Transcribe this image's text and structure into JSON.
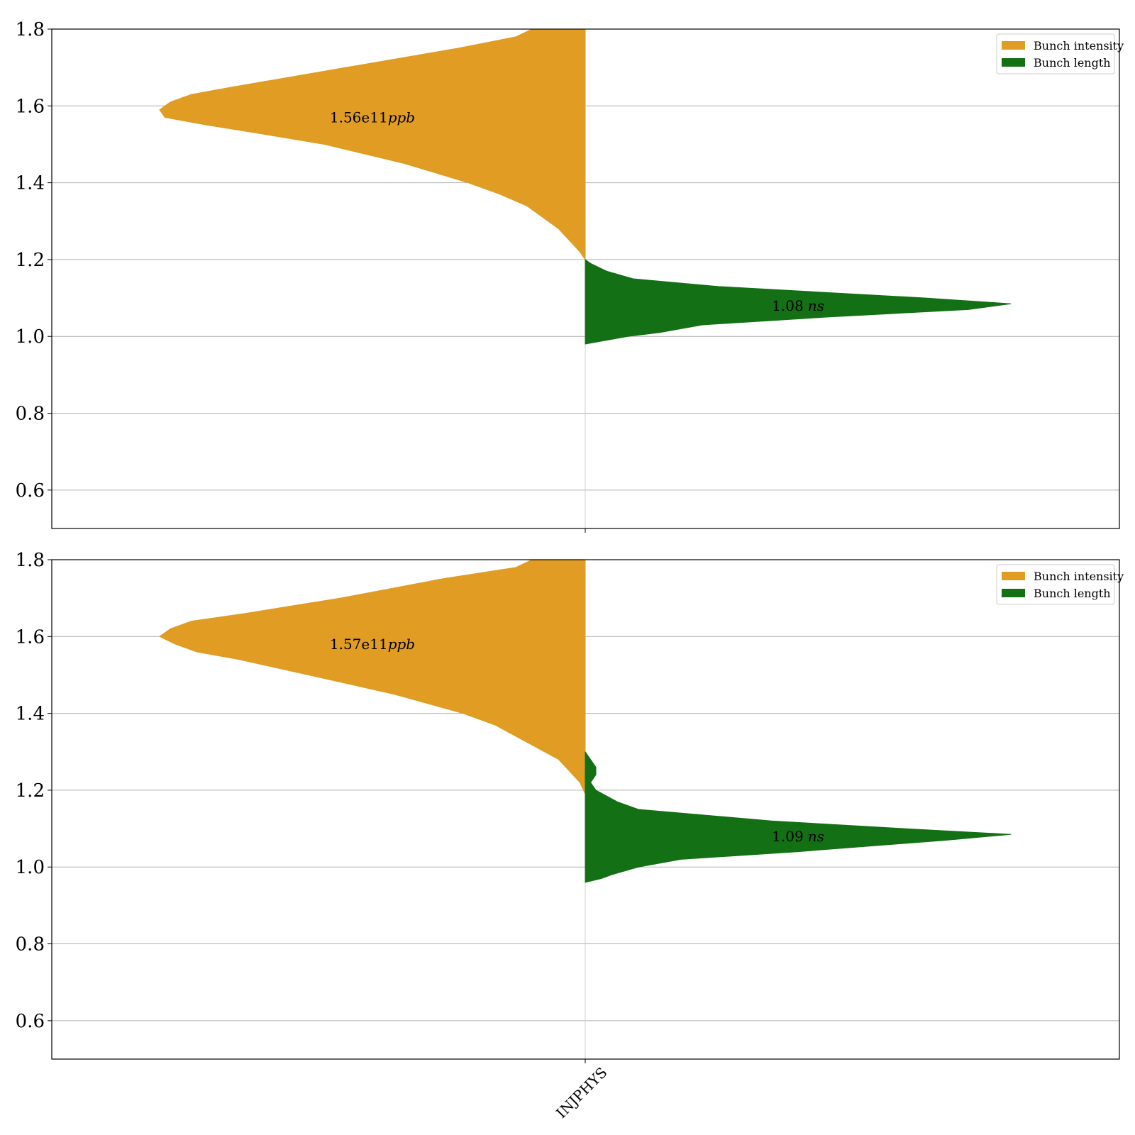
{
  "chart_data": [
    {
      "type": "violin",
      "categories": [
        "INJPHYS"
      ],
      "ylim": [
        0.5,
        1.8
      ],
      "yticks": [
        0.6,
        0.8,
        1.0,
        1.2,
        1.4,
        1.6,
        1.8
      ],
      "ytick_labels": [
        "0.6",
        "0.8",
        "1.0",
        "1.2",
        "1.4",
        "1.6",
        "1.8"
      ],
      "grid": true,
      "legend_position": "top-right",
      "series": [
        {
          "name": "Bunch intensity",
          "side": "left",
          "color": "#e09c23",
          "annotation": {
            "number": "1.56e11",
            "unit": "ppb",
            "y": 1.57
          },
          "profile": [
            [
              1.2,
              0.0
            ],
            [
              1.22,
              0.01
            ],
            [
              1.25,
              0.03
            ],
            [
              1.28,
              0.05
            ],
            [
              1.31,
              0.08
            ],
            [
              1.34,
              0.11
            ],
            [
              1.37,
              0.16
            ],
            [
              1.4,
              0.22
            ],
            [
              1.45,
              0.34
            ],
            [
              1.5,
              0.49
            ],
            [
              1.53,
              0.62
            ],
            [
              1.55,
              0.71
            ],
            [
              1.57,
              0.79
            ],
            [
              1.59,
              0.8
            ],
            [
              1.61,
              0.78
            ],
            [
              1.63,
              0.74
            ],
            [
              1.65,
              0.66
            ],
            [
              1.7,
              0.45
            ],
            [
              1.75,
              0.24
            ],
            [
              1.78,
              0.13
            ],
            [
              1.8,
              0.1
            ]
          ]
        },
        {
          "name": "Bunch length",
          "side": "right",
          "color": "#137014",
          "annotation": {
            "number": "1.08",
            "unit": "ns",
            "y": 1.08
          },
          "profile": [
            [
              0.98,
              0.0
            ],
            [
              0.99,
              0.04
            ],
            [
              1.0,
              0.08
            ],
            [
              1.01,
              0.14
            ],
            [
              1.03,
              0.22
            ],
            [
              1.05,
              0.45
            ],
            [
              1.07,
              0.72
            ],
            [
              1.085,
              0.8
            ],
            [
              1.1,
              0.64
            ],
            [
              1.12,
              0.38
            ],
            [
              1.13,
              0.25
            ],
            [
              1.15,
              0.09
            ],
            [
              1.17,
              0.04
            ],
            [
              1.19,
              0.01
            ],
            [
              1.2,
              0.0
            ]
          ]
        }
      ]
    },
    {
      "type": "violin",
      "categories": [
        "INJPHYS"
      ],
      "ylim": [
        0.5,
        1.8
      ],
      "yticks": [
        0.6,
        0.8,
        1.0,
        1.2,
        1.4,
        1.6,
        1.8
      ],
      "ytick_labels": [
        "0.6",
        "0.8",
        "1.0",
        "1.2",
        "1.4",
        "1.6",
        "1.8"
      ],
      "grid": true,
      "legend_position": "top-right",
      "xtick_labels": [
        "INJPHYS"
      ],
      "series": [
        {
          "name": "Bunch intensity",
          "side": "left",
          "color": "#e09c23",
          "annotation": {
            "number": "1.57e11",
            "unit": "ppb",
            "y": 1.58
          },
          "profile": [
            [
              1.19,
              0.0
            ],
            [
              1.22,
              0.01
            ],
            [
              1.25,
              0.03
            ],
            [
              1.28,
              0.05
            ],
            [
              1.31,
              0.09
            ],
            [
              1.34,
              0.13
            ],
            [
              1.37,
              0.17
            ],
            [
              1.4,
              0.23
            ],
            [
              1.45,
              0.36
            ],
            [
              1.5,
              0.52
            ],
            [
              1.54,
              0.65
            ],
            [
              1.56,
              0.73
            ],
            [
              1.58,
              0.77
            ],
            [
              1.6,
              0.8
            ],
            [
              1.62,
              0.78
            ],
            [
              1.64,
              0.74
            ],
            [
              1.66,
              0.64
            ],
            [
              1.7,
              0.46
            ],
            [
              1.75,
              0.27
            ],
            [
              1.78,
              0.13
            ],
            [
              1.8,
              0.1
            ]
          ]
        },
        {
          "name": "Bunch length",
          "side": "right",
          "color": "#137014",
          "annotation": {
            "number": "1.09",
            "unit": "ns",
            "y": 1.08
          },
          "profile": [
            [
              0.96,
              0.0
            ],
            [
              0.97,
              0.03
            ],
            [
              0.98,
              0.05
            ],
            [
              1.0,
              0.1
            ],
            [
              1.02,
              0.18
            ],
            [
              1.04,
              0.4
            ],
            [
              1.07,
              0.68
            ],
            [
              1.085,
              0.8
            ],
            [
              1.1,
              0.6
            ],
            [
              1.12,
              0.35
            ],
            [
              1.15,
              0.1
            ],
            [
              1.17,
              0.06
            ],
            [
              1.2,
              0.02
            ],
            [
              1.22,
              0.01
            ],
            [
              1.24,
              0.02
            ],
            [
              1.26,
              0.02
            ],
            [
              1.28,
              0.01
            ],
            [
              1.3,
              0.0
            ]
          ]
        }
      ]
    }
  ]
}
